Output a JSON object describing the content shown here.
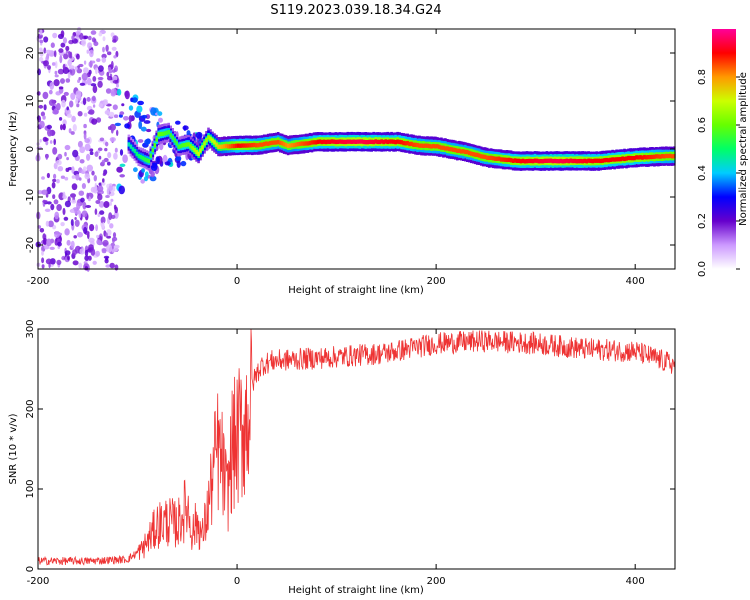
{
  "figure_title": "S119.2023.039.18.34.G24",
  "chart_data": [
    {
      "type": "heatmap",
      "title": "",
      "xlabel": "Height of straight line (km)",
      "ylabel": "Frequency (Hz)",
      "xlim": [
        -200,
        440
      ],
      "ylim": [
        -25,
        25
      ],
      "xticks": [
        -200,
        0,
        200,
        400
      ],
      "yticks": [
        -20,
        -10,
        0,
        10,
        20
      ],
      "grid": false,
      "colorbar": {
        "label": "Normalized spectral amplitude",
        "range": [
          0,
          1
        ],
        "ticks": [
          0.0,
          0.2,
          0.4,
          0.6,
          0.8
        ],
        "colormap": [
          "#ffffff",
          "#cc99ff",
          "#6600cc",
          "#0000ff",
          "#00ccff",
          "#00ff66",
          "#66ff00",
          "#ccff00",
          "#ff9900",
          "#ff0000",
          "#ff0099"
        ]
      },
      "noise_region_km": [
        -200,
        -120
      ],
      "ridge": [
        {
          "x": -110,
          "y": 1.0,
          "amp": 0.45
        },
        {
          "x": -100,
          "y": -1.5,
          "amp": 0.5
        },
        {
          "x": -90,
          "y": -2.5,
          "amp": 0.55
        },
        {
          "x": -80,
          "y": 3.0,
          "amp": 0.6
        },
        {
          "x": -70,
          "y": 3.5,
          "amp": 0.55
        },
        {
          "x": -60,
          "y": 0.5,
          "amp": 0.55
        },
        {
          "x": -50,
          "y": 1.0,
          "amp": 0.6
        },
        {
          "x": -40,
          "y": -1.0,
          "amp": 0.7
        },
        {
          "x": -30,
          "y": 2.5,
          "amp": 0.65
        },
        {
          "x": -20,
          "y": 0.5,
          "amp": 0.75
        },
        {
          "x": 0,
          "y": 0.7,
          "amp": 0.9
        },
        {
          "x": 20,
          "y": 0.8,
          "amp": 0.85
        },
        {
          "x": 40,
          "y": 1.5,
          "amp": 0.85
        },
        {
          "x": 50,
          "y": 0.7,
          "amp": 0.8
        },
        {
          "x": 80,
          "y": 1.5,
          "amp": 0.9
        },
        {
          "x": 120,
          "y": 1.5,
          "amp": 0.95
        },
        {
          "x": 160,
          "y": 1.5,
          "amp": 0.9
        },
        {
          "x": 180,
          "y": 0.8,
          "amp": 0.85
        },
        {
          "x": 200,
          "y": 0.5,
          "amp": 0.85
        },
        {
          "x": 230,
          "y": -0.7,
          "amp": 0.85
        },
        {
          "x": 250,
          "y": -1.8,
          "amp": 0.85
        },
        {
          "x": 280,
          "y": -2.5,
          "amp": 0.9
        },
        {
          "x": 320,
          "y": -2.5,
          "amp": 0.95
        },
        {
          "x": 360,
          "y": -2.5,
          "amp": 0.9
        },
        {
          "x": 400,
          "y": -1.8,
          "amp": 0.9
        },
        {
          "x": 430,
          "y": -1.5,
          "amp": 0.85
        }
      ]
    },
    {
      "type": "line",
      "title": "",
      "xlabel": "Height of straight line (km)",
      "ylabel": "SNR (10 * v/v)",
      "xlim": [
        -200,
        440
      ],
      "ylim": [
        0,
        300
      ],
      "xticks": [
        -200,
        0,
        200,
        400
      ],
      "yticks": [
        0,
        100,
        200,
        300
      ],
      "grid": false,
      "series": [
        {
          "color": "#ee3333",
          "points": [
            [
              -200,
              10
            ],
            [
              -150,
              10
            ],
            [
              -110,
              12
            ],
            [
              -95,
              25
            ],
            [
              -80,
              55
            ],
            [
              -70,
              60
            ],
            [
              -60,
              55
            ],
            [
              -50,
              80
            ],
            [
              -45,
              45
            ],
            [
              -40,
              60
            ],
            [
              -35,
              40
            ],
            [
              -30,
              70
            ],
            [
              -25,
              110
            ],
            [
              -20,
              150
            ],
            [
              -15,
              130
            ],
            [
              -10,
              90
            ],
            [
              -5,
              150
            ],
            [
              0,
              160
            ],
            [
              5,
              175
            ],
            [
              10,
              190
            ],
            [
              15,
              230
            ],
            [
              20,
              245
            ],
            [
              25,
              255
            ],
            [
              35,
              260
            ],
            [
              60,
              262
            ],
            [
              100,
              265
            ],
            [
              150,
              270
            ],
            [
              200,
              282
            ],
            [
              250,
              285
            ],
            [
              300,
              282
            ],
            [
              350,
              275
            ],
            [
              400,
              272
            ],
            [
              440,
              255
            ]
          ]
        }
      ]
    }
  ]
}
